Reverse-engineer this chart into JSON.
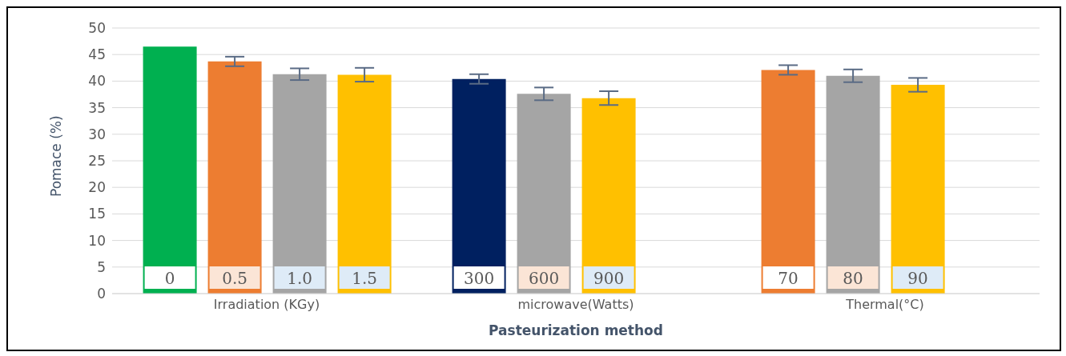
{
  "chart_data": {
    "type": "bar",
    "xlabel": "Pasteurization method",
    "ylabel": "Pomace (%)",
    "categories": [
      "Irradiation (KGy)",
      "microwave(Watts)",
      "Thermal(°C)"
    ],
    "series": [
      {
        "colors": [
          "#00b050",
          "#002060",
          "#ed7d31"
        ],
        "values": [
          46.5,
          40.4,
          42.1
        ],
        "errors": [
          null,
          0.9,
          0.9
        ]
      },
      {
        "colors": [
          "#ed7d31",
          "#a5a5a5",
          "#a5a5a5"
        ],
        "values": [
          43.7,
          37.6,
          41.0
        ],
        "errors": [
          0.9,
          1.2,
          1.2
        ]
      },
      {
        "colors": [
          "#a5a5a5",
          "#ffc000",
          "#ffc000"
        ],
        "values": [
          41.3,
          36.8,
          39.3
        ],
        "errors": [
          1.1,
          1.3,
          1.3
        ]
      },
      {
        "colors": [
          "#ffc000",
          null,
          null
        ],
        "values": [
          41.2,
          null,
          null
        ],
        "errors": [
          1.3,
          null,
          null
        ]
      }
    ],
    "annotations": [
      "0",
      "0.5",
      "1.0",
      "1.5",
      "300",
      "600",
      "900",
      "70",
      "80",
      "90"
    ],
    "ylim": [
      0,
      50
    ],
    "yticks": [
      0,
      5,
      10,
      15,
      20,
      25,
      30,
      35,
      40,
      45,
      50
    ],
    "grid": "y"
  }
}
